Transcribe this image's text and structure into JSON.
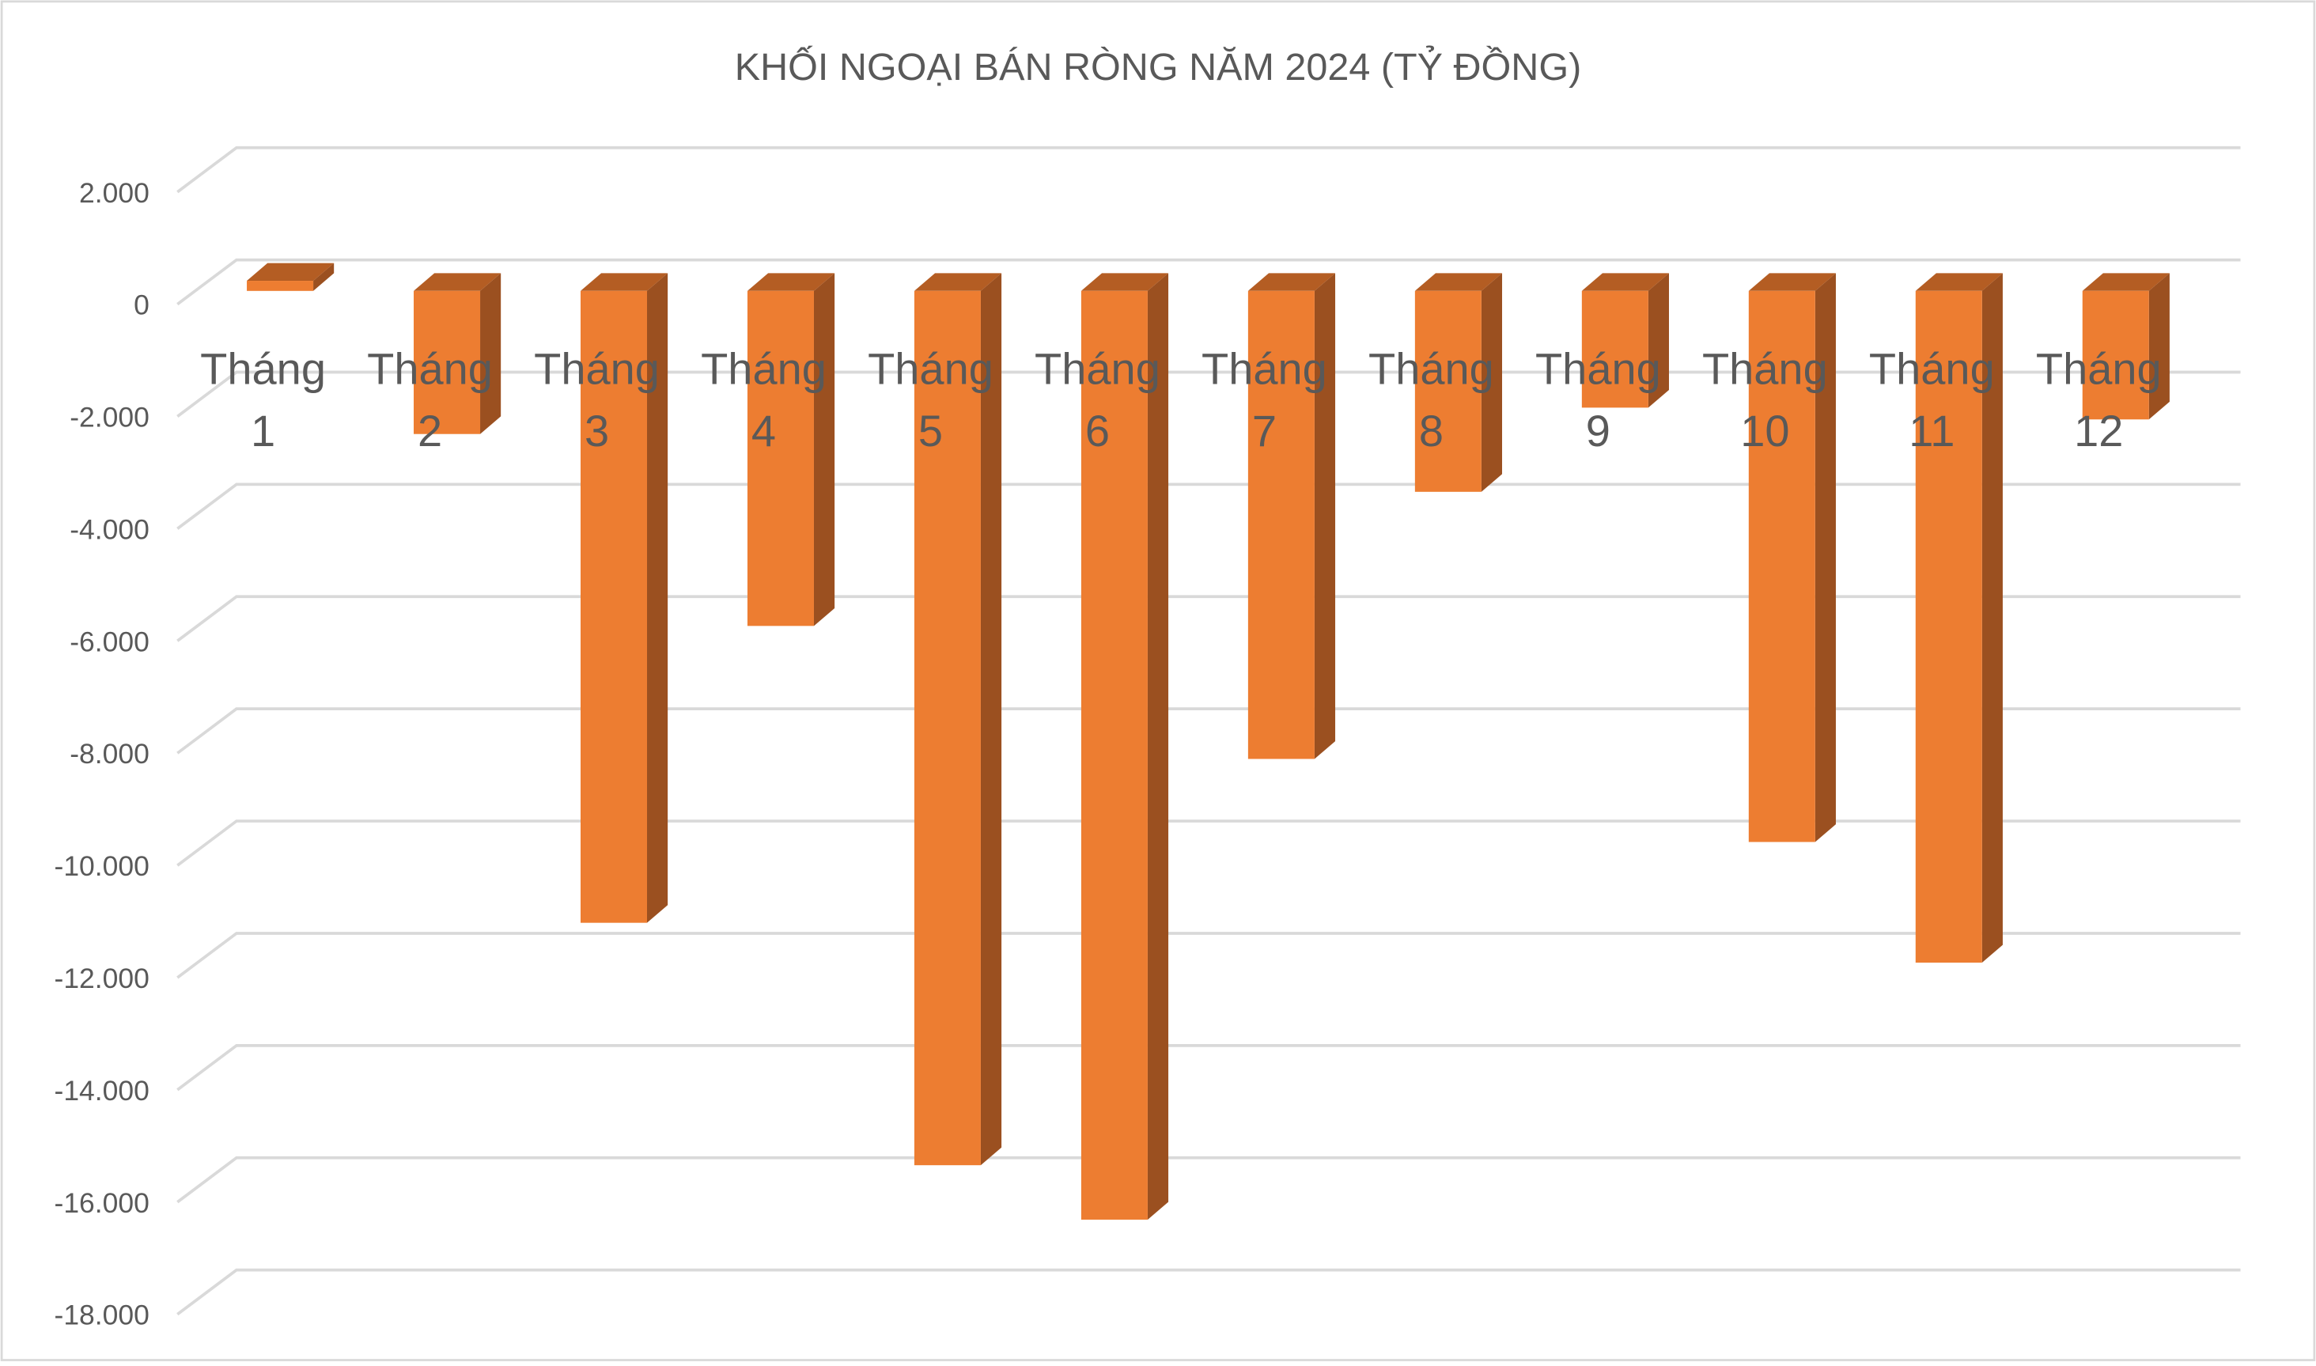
{
  "chart_data": {
    "type": "bar",
    "title": "KHỐI NGOẠI BÁN RÒNG NĂM 2024 (TỶ ĐỒNG)",
    "xlabel": "",
    "ylabel": "",
    "categories": [
      [
        "Tháng",
        "1"
      ],
      [
        "Tháng",
        "2"
      ],
      [
        "Tháng",
        "3"
      ],
      [
        "Tháng",
        "4"
      ],
      [
        "Tháng",
        "5"
      ],
      [
        "Tháng",
        "6"
      ],
      [
        "Tháng",
        "7"
      ],
      [
        "Tháng",
        "8"
      ],
      [
        "Tháng",
        "9"
      ],
      [
        "Tháng",
        "10"
      ],
      [
        "Tháng",
        "11"
      ],
      [
        "Tháng",
        "12"
      ]
    ],
    "values": [
      180,
      -2550,
      -11260,
      -5970,
      -15580,
      -16550,
      -8340,
      -3580,
      -2080,
      -9820,
      -11970,
      -2290
    ],
    "ylim": [
      -18000,
      2000
    ],
    "yticks": [
      2000,
      0,
      -2000,
      -4000,
      -6000,
      -8000,
      -10000,
      -12000,
      -14000,
      -16000,
      -18000
    ],
    "ytick_labels": [
      "2.000",
      "0",
      "-2.000",
      "-4.000",
      "-6.000",
      "-8.000",
      "-10.000",
      "-12.000",
      "-14.000",
      "-16.000",
      "-18.000"
    ],
    "grid": true,
    "style": "3d-column",
    "colors": {
      "front": "#ED7D31",
      "top": "#B45D23",
      "side": "#9B5020",
      "grid": "#D9D9D9",
      "text": "#595959"
    }
  }
}
